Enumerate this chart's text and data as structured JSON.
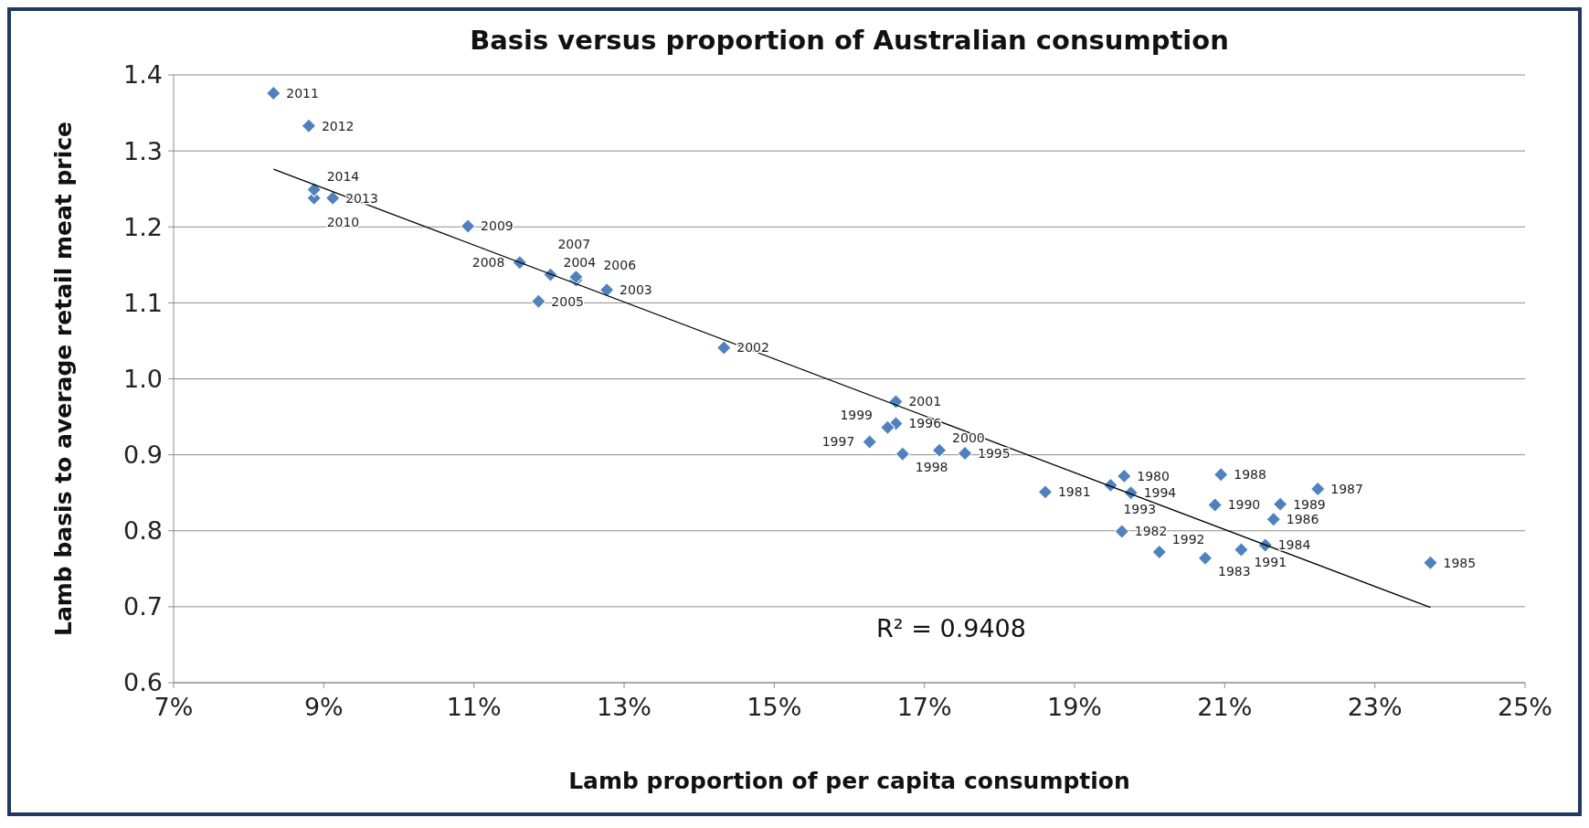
{
  "chart_data": {
    "type": "scatter",
    "title": "Basis versus proportion of Australian consumption",
    "xlabel": "Lamb proportion  of per capita consumption",
    "ylabel": "Lamb basis to average retail meat price",
    "xlim": [
      7,
      25
    ],
    "xticks": [
      {
        "value": 7,
        "label": "7%"
      },
      {
        "value": 9,
        "label": "9%"
      },
      {
        "value": 11,
        "label": "11%"
      },
      {
        "value": 13,
        "label": "13%"
      },
      {
        "value": 15,
        "label": "15%"
      },
      {
        "value": 17,
        "label": "17%"
      },
      {
        "value": 19,
        "label": "19%"
      },
      {
        "value": 21,
        "label": "21%"
      },
      {
        "value": 23,
        "label": "23%"
      },
      {
        "value": 25,
        "label": "25%"
      }
    ],
    "ylim": [
      0.6,
      1.4
    ],
    "yticks": [
      0.6,
      0.7,
      0.8,
      0.9,
      {
        "value": 1.0,
        "label": "1.0"
      },
      1.1,
      1.2,
      1.3,
      1.4
    ],
    "grid": "y",
    "marker": "diamond",
    "series": [
      {
        "color": "#4f81bd",
        "x": [
          19.66,
          18.61,
          19.63,
          20.74,
          21.54,
          23.74,
          21.65,
          22.24,
          20.95,
          21.74,
          20.87,
          21.22,
          20.13,
          19.48,
          19.75,
          17.54,
          16.62,
          16.27,
          16.71,
          16.51,
          17.2,
          16.62,
          14.33,
          12.77,
          12.02,
          11.86,
          12.36,
          12.36,
          11.61,
          10.92,
          8.87,
          8.33,
          8.8,
          9.12,
          8.87
        ],
        "values": [
          0.872,
          0.851,
          0.799,
          0.764,
          0.781,
          0.758,
          0.815,
          0.855,
          0.874,
          0.835,
          0.834,
          0.775,
          0.772,
          0.86,
          0.85,
          0.902,
          0.941,
          0.917,
          0.901,
          0.936,
          0.906,
          0.97,
          1.041,
          1.117,
          1.137,
          1.102,
          1.13,
          1.134,
          1.153,
          1.201,
          1.238,
          1.376,
          1.333,
          1.238,
          1.249
        ]
      },
      {
        "type": "line",
        "color": "#000000",
        "line_style": "solid",
        "marker": "none",
        "x": [
          8.33,
          23.74
        ],
        "values": [
          1.276,
          0.699
        ]
      }
    ],
    "annotations": [
      {
        "text": "1980",
        "x": 19.66,
        "y": 0.872
      },
      {
        "text": "1981",
        "x": 18.61,
        "y": 0.851
      },
      {
        "text": "1982",
        "x": 19.63,
        "y": 0.799
      },
      {
        "text": "1983",
        "x": 20.74,
        "y": 0.764
      },
      {
        "text": "1984",
        "x": 21.54,
        "y": 0.781
      },
      {
        "text": "1985",
        "x": 23.74,
        "y": 0.758
      },
      {
        "text": "1986",
        "x": 21.65,
        "y": 0.815
      },
      {
        "text": "1987",
        "x": 22.24,
        "y": 0.855
      },
      {
        "text": "1988",
        "x": 20.95,
        "y": 0.874
      },
      {
        "text": "1989",
        "x": 21.74,
        "y": 0.835
      },
      {
        "text": "1990",
        "x": 20.87,
        "y": 0.834
      },
      {
        "text": "1991",
        "x": 21.22,
        "y": 0.775
      },
      {
        "text": "1992",
        "x": 20.13,
        "y": 0.772
      },
      {
        "text": "1993",
        "x": 19.48,
        "y": 0.86
      },
      {
        "text": "1994",
        "x": 19.75,
        "y": 0.85
      },
      {
        "text": "1995",
        "x": 17.54,
        "y": 0.902
      },
      {
        "text": "1996",
        "x": 16.62,
        "y": 0.941
      },
      {
        "text": "1997",
        "x": 16.27,
        "y": 0.917
      },
      {
        "text": "1998",
        "x": 16.71,
        "y": 0.901
      },
      {
        "text": "1999",
        "x": 16.51,
        "y": 0.936
      },
      {
        "text": "2000",
        "x": 17.2,
        "y": 0.906
      },
      {
        "text": "2001",
        "x": 16.62,
        "y": 0.97
      },
      {
        "text": "2002",
        "x": 14.33,
        "y": 1.041
      },
      {
        "text": "2003",
        "x": 12.77,
        "y": 1.117
      },
      {
        "text": "2004",
        "x": 12.02,
        "y": 1.137
      },
      {
        "text": "2005",
        "x": 11.86,
        "y": 1.102
      },
      {
        "text": "2006",
        "x": 12.36,
        "y": 1.13
      },
      {
        "text": "2007",
        "x": 12.36,
        "y": 1.134
      },
      {
        "text": "2008",
        "x": 11.61,
        "y": 1.153
      },
      {
        "text": "2009",
        "x": 10.92,
        "y": 1.201
      },
      {
        "text": "2010",
        "x": 8.87,
        "y": 1.238
      },
      {
        "text": "2011",
        "x": 8.33,
        "y": 1.376
      },
      {
        "text": "2012",
        "x": 8.8,
        "y": 1.333
      },
      {
        "text": "2013",
        "x": 9.12,
        "y": 1.238
      },
      {
        "text": "2014",
        "x": 8.87,
        "y": 1.249
      },
      "R² = 0.9408"
    ]
  }
}
